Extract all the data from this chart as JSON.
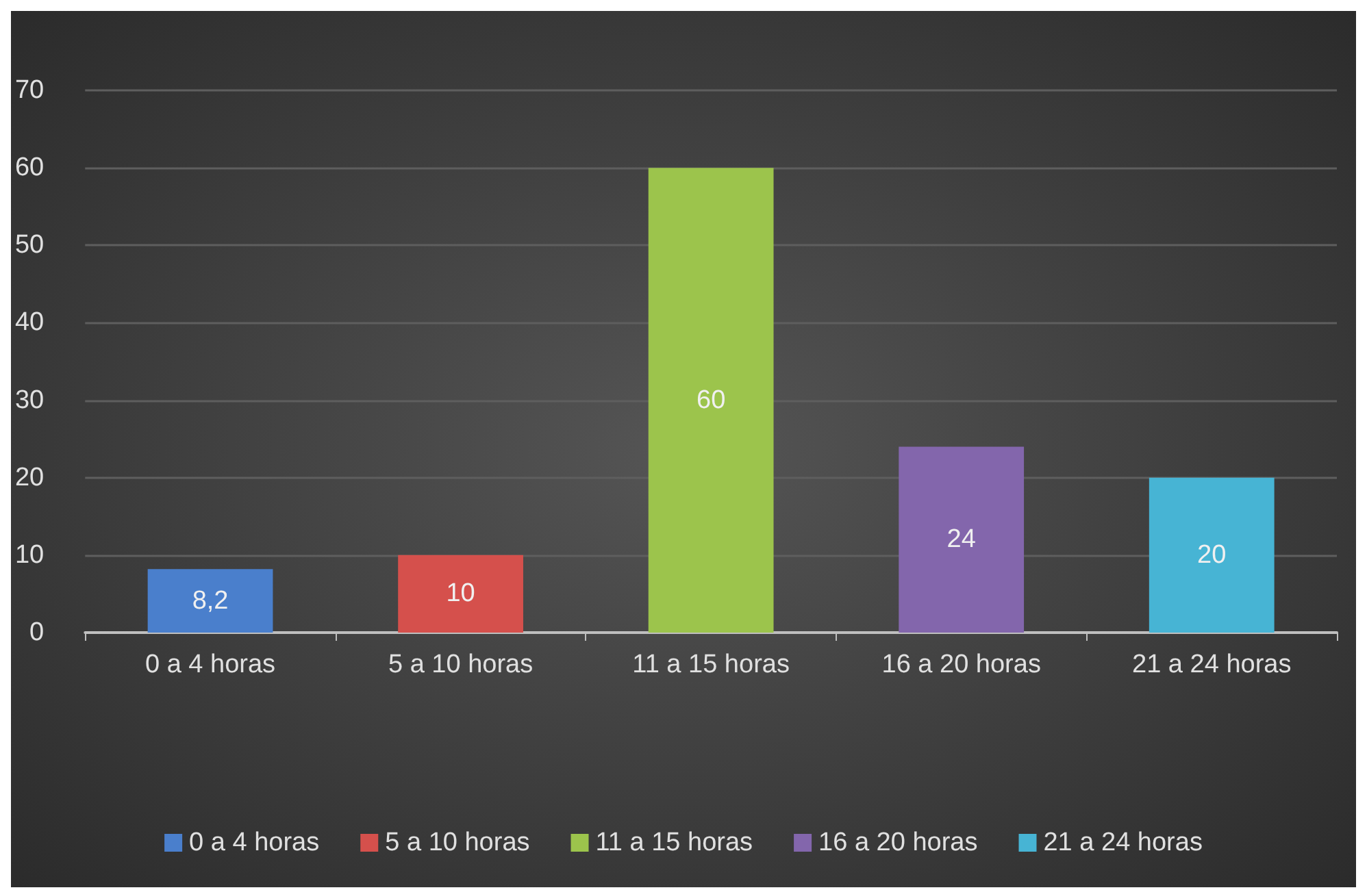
{
  "chart_data": {
    "type": "bar",
    "categories": [
      "0 a 4 horas",
      "5 a 10 horas",
      "11 a 15 horas",
      "16 a 20 horas",
      "21 a 24 horas"
    ],
    "series": [
      {
        "name": "0 a 4 horas",
        "color": "#4a7fcc",
        "values": [
          8.2,
          null,
          null,
          null,
          null
        ],
        "value_labels": [
          "8,2",
          null,
          null,
          null,
          null
        ]
      },
      {
        "name": "5 a 10 horas",
        "color": "#d5504c",
        "values": [
          null,
          10,
          null,
          null,
          null
        ],
        "value_labels": [
          null,
          "10",
          null,
          null,
          null
        ]
      },
      {
        "name": "11 a 15 horas",
        "color": "#9cc44c",
        "values": [
          null,
          null,
          60,
          null,
          null
        ],
        "value_labels": [
          null,
          null,
          "60",
          null,
          null
        ]
      },
      {
        "name": "16 a 20 horas",
        "color": "#8366ac",
        "values": [
          null,
          null,
          null,
          24,
          null
        ],
        "value_labels": [
          null,
          null,
          null,
          "24",
          null
        ]
      },
      {
        "name": "21 a 24 horas",
        "color": "#47b4d4",
        "values": [
          null,
          null,
          null,
          null,
          20
        ],
        "value_labels": [
          null,
          null,
          null,
          null,
          "20"
        ]
      }
    ],
    "ylim": [
      0,
      70
    ],
    "yticks": [
      0,
      10,
      20,
      30,
      40,
      50,
      60,
      70
    ],
    "grid": "y",
    "legend": "bottom"
  }
}
